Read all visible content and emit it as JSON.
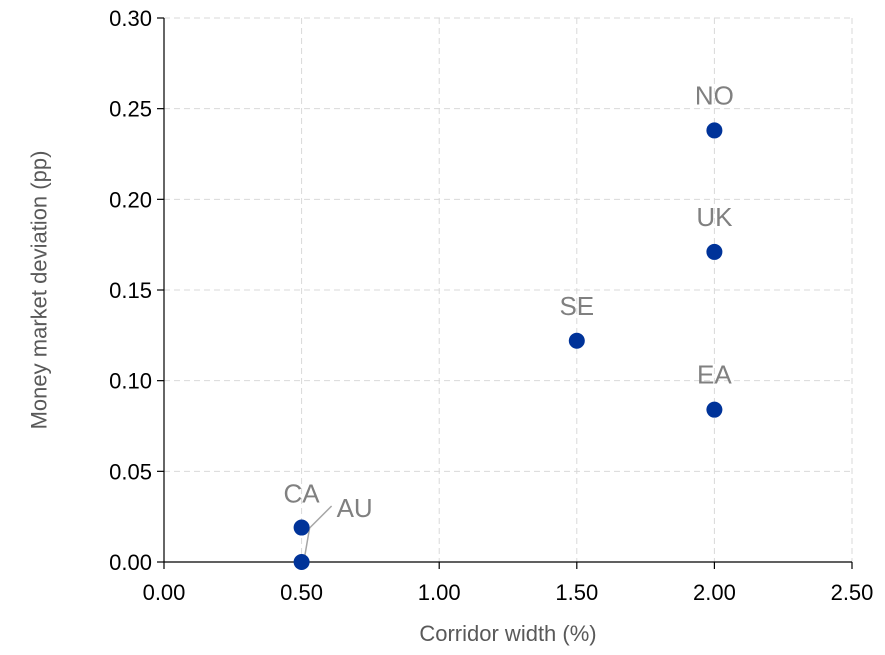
{
  "chart_data": {
    "type": "scatter",
    "title": "",
    "xlabel": "Corridor width (%)",
    "ylabel": "Money market deviation (pp)",
    "xlim": [
      0,
      2.5
    ],
    "ylim": [
      0,
      0.3
    ],
    "x_ticks": [
      "0.00",
      "0.50",
      "1.00",
      "1.50",
      "2.00",
      "2.50"
    ],
    "y_ticks": [
      "0.00",
      "0.05",
      "0.10",
      "0.15",
      "0.20",
      "0.25",
      "0.30"
    ],
    "grid": true,
    "legend": "none",
    "marker_color": "#003399",
    "label_color": "#808080",
    "points": [
      {
        "label": "NO",
        "x": 2.0,
        "y": 0.238
      },
      {
        "label": "UK",
        "x": 2.0,
        "y": 0.171
      },
      {
        "label": "SE",
        "x": 1.5,
        "y": 0.122
      },
      {
        "label": "EA",
        "x": 2.0,
        "y": 0.084
      },
      {
        "label": "CA",
        "x": 0.5,
        "y": 0.019
      },
      {
        "label": "AU",
        "x": 0.5,
        "y": 0.0
      }
    ]
  }
}
